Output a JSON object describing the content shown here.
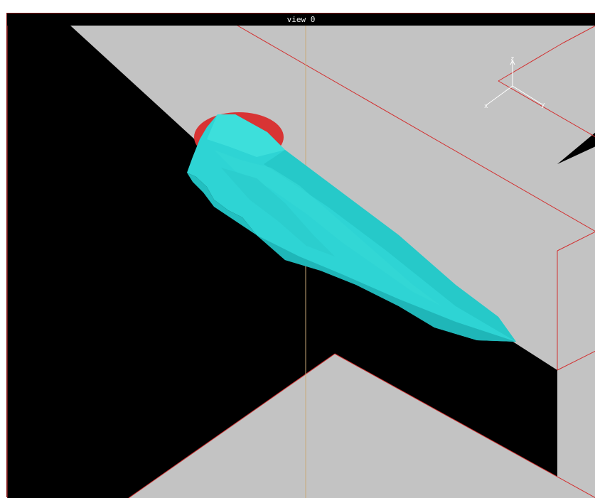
{
  "window": {
    "title": "view 0"
  },
  "axes_widget": {
    "labels": [
      "x",
      "y",
      "z"
    ]
  },
  "colors": {
    "background": "#000000",
    "floor": "#c3c3c3",
    "edge": "#d23030",
    "mesh": "#2ed4d4",
    "mesh_shade": "#1fb6b8",
    "disk": "#d83434",
    "vertical_line": "#c8a878"
  }
}
